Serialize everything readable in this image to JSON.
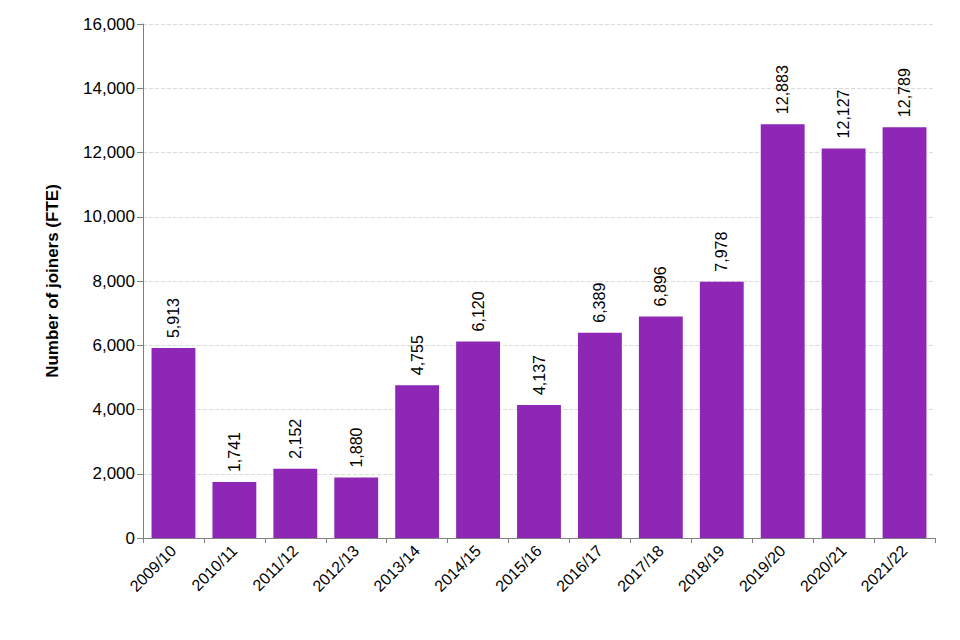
{
  "chart_data": {
    "type": "bar",
    "y_label": "Number of joiners (FTE)",
    "categories": [
      "2009/10",
      "2010/11",
      "2011/12",
      "2012/13",
      "2013/14",
      "2014/15",
      "2015/16",
      "2016/17",
      "2017/18",
      "2018/19",
      "2019/20",
      "2020/21",
      "2021/22"
    ],
    "values": [
      5913,
      1741,
      2152,
      1880,
      4755,
      6120,
      4137,
      6389,
      6896,
      7978,
      12883,
      12127,
      12789
    ],
    "value_labels": [
      "5,913",
      "1,741",
      "2,152",
      "1,880",
      "4,755",
      "6,120",
      "4,137",
      "6,389",
      "6,896",
      "7,978",
      "12,883",
      "12,127",
      "12,789"
    ],
    "color": "#8e27b5",
    "ylim": [
      0,
      16000
    ],
    "yticks": [
      0,
      {
        "value": 2000,
        "label": "2,000"
      },
      {
        "value": 4000,
        "label": "4,000"
      },
      {
        "value": 6000,
        "label": "6,000"
      },
      {
        "value": 8000,
        "label": "8,000"
      },
      {
        "value": 10000,
        "label": "10,000"
      },
      {
        "value": 12000,
        "label": "12,000"
      },
      {
        "value": 14000,
        "label": "14,000"
      },
      {
        "value": 16000,
        "label": "16,000"
      }
    ],
    "grid": true,
    "data_labels": true
  }
}
